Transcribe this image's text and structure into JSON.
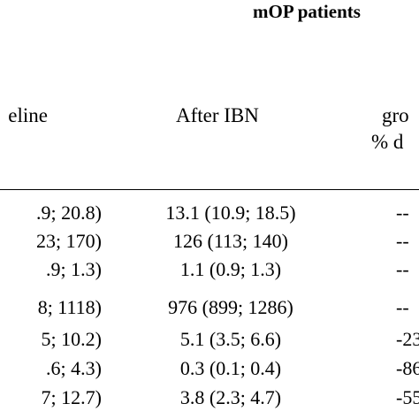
{
  "table": {
    "group_header": "mOP patients",
    "columns": {
      "baseline": "eline",
      "after_ibn": "After IBN",
      "change_line1": "gro",
      "change_line2": "% d"
    },
    "rows": [
      {
        "baseline": ".9; 20.8)",
        "after_ibn": "13.1 (10.9; 18.5)",
        "change": "--"
      },
      {
        "baseline": "23; 170)",
        "after_ibn": "126 (113; 140)",
        "change": "--"
      },
      {
        "baseline": ".9; 1.3)",
        "after_ibn": "1.1 (0.9; 1.3)",
        "change": "--"
      },
      {
        "baseline": "8; 1118)",
        "after_ibn": "976 (899; 1286)",
        "change": "--"
      },
      {
        "baseline": "5; 10.2)",
        "after_ibn": "5.1 (3.5; 6.6)",
        "change": "-23"
      },
      {
        "baseline": ".6; 4.3)",
        "after_ibn": "0.3 (0.1; 0.4)",
        "change": "-86"
      },
      {
        "baseline": "7; 12.7)",
        "after_ibn": "3.8 (2.3; 4.7)",
        "change": "-55"
      }
    ]
  }
}
